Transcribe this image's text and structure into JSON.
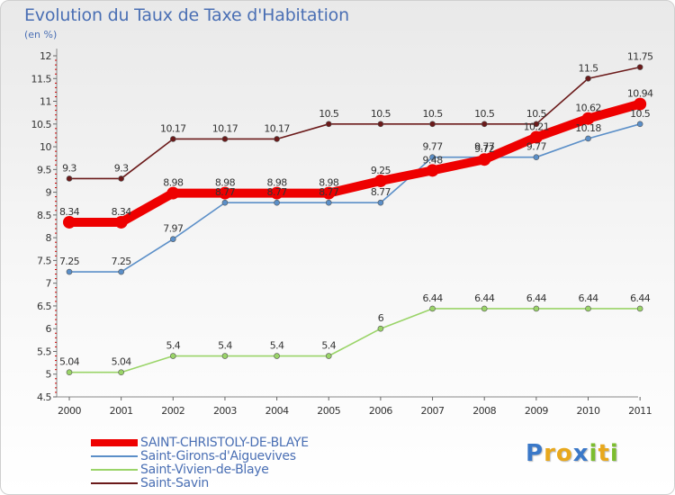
{
  "title": "Evolution du Taux de Taxe d'Habitation",
  "subtitle": "(en %)",
  "logo": {
    "text": "Proxiti",
    "letters": [
      {
        "ch": "P",
        "color": "#3a78c8"
      },
      {
        "ch": "r",
        "color": "#e8a81c"
      },
      {
        "ch": "o",
        "color": "#e8a81c"
      },
      {
        "ch": "x",
        "color": "#3a78c8"
      },
      {
        "ch": "i",
        "color": "#7cbd2e"
      },
      {
        "ch": "t",
        "color": "#e8a81c"
      },
      {
        "ch": "i",
        "color": "#7cbd2e"
      }
    ]
  },
  "chart_data": {
    "type": "line",
    "title": "Evolution du Taux de Taxe d'Habitation",
    "ylabel": "(en %)",
    "x": [
      "2000",
      "2001",
      "2002",
      "2003",
      "2004",
      "2005",
      "2006",
      "2007",
      "2008",
      "2009",
      "2010",
      "2011"
    ],
    "ylim": [
      4.5,
      12
    ],
    "yticks": [
      "4.5",
      "5",
      "5.5",
      "6",
      "6.5",
      "7",
      "7.5",
      "8",
      "8.5",
      "9",
      "9.5",
      "10",
      "10.5",
      "11",
      "11.5",
      "12"
    ],
    "grid": false,
    "legend_position": "bottom-left",
    "series": [
      {
        "name": "Saint-Savin",
        "color": "#6b1a1a",
        "emphasis": false,
        "values": [
          9.3,
          9.3,
          10.17,
          10.17,
          10.17,
          10.5,
          10.5,
          10.5,
          10.5,
          10.5,
          11.5,
          11.75
        ],
        "labels": [
          "9.3",
          "9.3",
          "10.17",
          "10.17",
          "10.17",
          "10.5",
          "10.5",
          "10.5",
          "10.5",
          "10.5",
          "11.5",
          "11.75"
        ]
      },
      {
        "name": "Saint-Girons-d'Aiguevives",
        "color": "#5b8fc8",
        "emphasis": false,
        "values": [
          7.25,
          7.25,
          7.97,
          8.77,
          8.77,
          8.77,
          8.77,
          9.77,
          9.77,
          9.77,
          10.18,
          10.5
        ],
        "labels": [
          "7.25",
          "7.25",
          "7.97",
          "8.77",
          "8.77",
          "8.77",
          "8.77",
          "9.77",
          "9.77",
          "9.77",
          "10.18",
          "10.5"
        ]
      },
      {
        "name": "Saint-Vivien-de-Blaye",
        "color": "#9ad468",
        "emphasis": false,
        "values": [
          5.04,
          5.04,
          5.4,
          5.4,
          5.4,
          5.4,
          6,
          6.44,
          6.44,
          6.44,
          6.44,
          6.44
        ],
        "labels": [
          "5.04",
          "5.04",
          "5.4",
          "5.4",
          "5.4",
          "5.4",
          "6",
          "6.44",
          "6.44",
          "6.44",
          "6.44",
          "6.44"
        ]
      },
      {
        "name": "SAINT-CHRISTOLY-DE-BLAYE",
        "color": "#ee0000",
        "emphasis": true,
        "values": [
          8.34,
          8.34,
          8.98,
          8.98,
          8.98,
          8.98,
          9.25,
          9.48,
          9.72,
          10.21,
          10.62,
          10.94
        ],
        "labels": [
          "8.34",
          "8.34",
          "8.98",
          "8.98",
          "8.98",
          "8.98",
          "9.25",
          "9.48",
          "9.72",
          "10.21",
          "10.62",
          "10.94"
        ]
      }
    ],
    "legend": [
      "SAINT-CHRISTOLY-DE-BLAYE",
      "Saint-Girons-d'Aiguevives",
      "Saint-Vivien-de-Blaye",
      "Saint-Savin"
    ]
  }
}
